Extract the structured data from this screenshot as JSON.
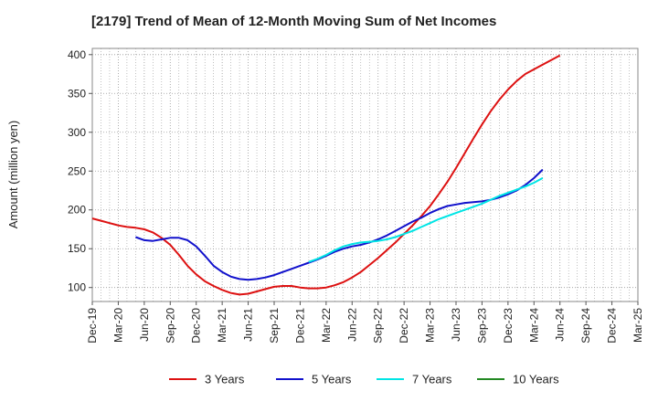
{
  "chart_data": {
    "type": "line",
    "title": "[2179]  Trend of Mean of 12-Month Moving Sum of Net Incomes",
    "xlabel": "",
    "ylabel": "Amount (million yen)",
    "ylim": [
      82,
      408
    ],
    "yticks": [
      100,
      150,
      200,
      250,
      300,
      350,
      400
    ],
    "xticks": [
      "Dec-19",
      "Mar-20",
      "Jun-20",
      "Sep-20",
      "Dec-20",
      "Mar-21",
      "Jun-21",
      "Sep-21",
      "Dec-21",
      "Mar-22",
      "Jun-22",
      "Sep-22",
      "Dec-22",
      "Mar-23",
      "Jun-23",
      "Sep-23",
      "Dec-23",
      "Mar-24",
      "Jun-24",
      "Sep-24",
      "Dec-24",
      "Mar-25"
    ],
    "grid": true,
    "legend_position": "bottom",
    "series": [
      {
        "name": "3 Years",
        "color": "#dd1111",
        "values": [
          189,
          186,
          183,
          180,
          178,
          177,
          175,
          171,
          164,
          155,
          142,
          128,
          117,
          108,
          102,
          97,
          93,
          91,
          92,
          95,
          98,
          101,
          102,
          102,
          100,
          99,
          99,
          100,
          103,
          107,
          113,
          120,
          129,
          138,
          148,
          158,
          169,
          180,
          192,
          205,
          220,
          236,
          254,
          273,
          292,
          310,
          327,
          342,
          355,
          366,
          375,
          381,
          387,
          393,
          399
        ]
      },
      {
        "name": "5 Years",
        "color": "#1111cc",
        "values": [
          null,
          null,
          null,
          null,
          null,
          165,
          161,
          160,
          162,
          164,
          164,
          161,
          153,
          141,
          128,
          120,
          114,
          111,
          110,
          111,
          113,
          116,
          120,
          124,
          128,
          132,
          136,
          141,
          146,
          150,
          153,
          155,
          158,
          162,
          167,
          173,
          179,
          185,
          190,
          196,
          201,
          205,
          207,
          209,
          210,
          211,
          213,
          216,
          220,
          225,
          232,
          241,
          252
        ]
      },
      {
        "name": "7 Years",
        "color": "#00e5e5",
        "values": [
          null,
          null,
          null,
          null,
          null,
          null,
          null,
          null,
          null,
          null,
          null,
          null,
          null,
          null,
          null,
          null,
          null,
          null,
          null,
          null,
          null,
          null,
          null,
          null,
          null,
          133,
          137,
          142,
          148,
          153,
          156,
          158,
          159,
          160,
          162,
          165,
          169,
          173,
          178,
          183,
          188,
          192,
          196,
          200,
          204,
          208,
          213,
          218,
          222,
          226,
          230,
          235,
          241
        ]
      },
      {
        "name": "10 Years",
        "color": "#228822",
        "values": []
      }
    ]
  }
}
